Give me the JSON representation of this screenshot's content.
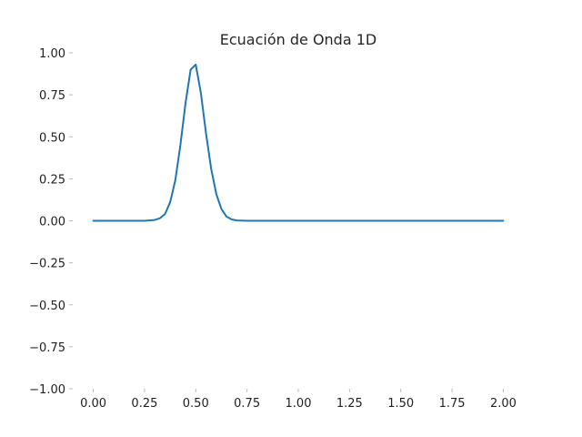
{
  "chart_data": {
    "type": "line",
    "title": "Ecuación de Onda 1D",
    "xlabel": "",
    "ylabel": "",
    "xlim": [
      -0.1,
      2.1
    ],
    "ylim": [
      -1.0,
      1.0
    ],
    "grid": false,
    "x_ticks": [
      {
        "value": 0.0,
        "label": "0.00"
      },
      {
        "value": 0.25,
        "label": "0.25"
      },
      {
        "value": 0.5,
        "label": "0.50"
      },
      {
        "value": 0.75,
        "label": "0.75"
      },
      {
        "value": 1.0,
        "label": "1.00"
      },
      {
        "value": 1.25,
        "label": "1.25"
      },
      {
        "value": 1.5,
        "label": "1.50"
      },
      {
        "value": 1.75,
        "label": "1.75"
      },
      {
        "value": 2.0,
        "label": "2.00"
      }
    ],
    "y_ticks": [
      {
        "value": 1.0,
        "label": "1.00"
      },
      {
        "value": 0.75,
        "label": "0.75"
      },
      {
        "value": 0.5,
        "label": "0.50"
      },
      {
        "value": 0.25,
        "label": "0.25"
      },
      {
        "value": 0.0,
        "label": "0.00"
      },
      {
        "value": -0.25,
        "label": "−0.25"
      },
      {
        "value": -0.5,
        "label": "−0.50"
      },
      {
        "value": -0.75,
        "label": "−0.75"
      },
      {
        "value": -1.0,
        "label": "−1.00"
      }
    ],
    "series": [
      {
        "color": "#1f77b4",
        "x": [
          0.0,
          0.25,
          0.3,
          0.325,
          0.35,
          0.375,
          0.4,
          0.425,
          0.45,
          0.475,
          0.5,
          0.525,
          0.55,
          0.575,
          0.6,
          0.625,
          0.65,
          0.675,
          0.7,
          0.75,
          1.0,
          1.5,
          2.0
        ],
        "y": [
          0.0,
          0.0,
          0.005,
          0.015,
          0.04,
          0.11,
          0.24,
          0.45,
          0.7,
          0.9,
          0.93,
          0.76,
          0.52,
          0.31,
          0.16,
          0.07,
          0.025,
          0.008,
          0.002,
          0.0,
          0.0,
          0.0,
          0.0
        ]
      }
    ]
  }
}
